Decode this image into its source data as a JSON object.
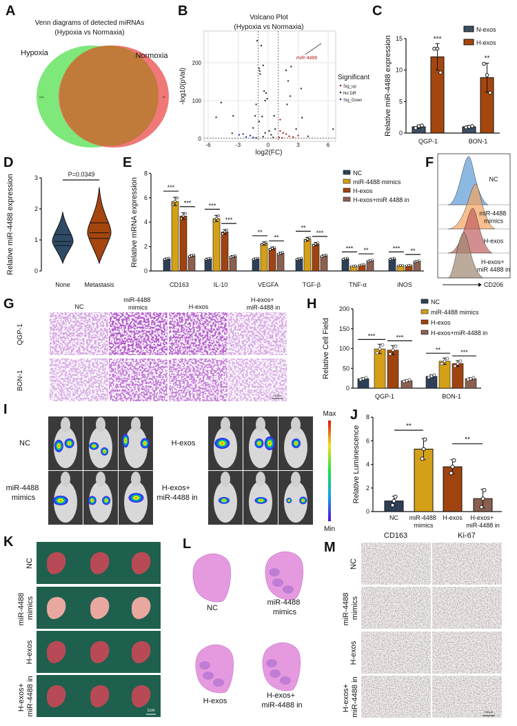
{
  "panels": {
    "A": {
      "letter": "A",
      "title": [
        "Venn diagrams of detected miRNAs",
        "(Hypoxia vs Normaxia)"
      ],
      "left_label": "Hypoxia",
      "right_label": "Normoxia",
      "left_count": "113",
      "right_count": "67",
      "colors": {
        "hypoxia": "#7ee87a",
        "normoxia": "#f07878",
        "overlap": "#c07a3a"
      }
    },
    "B": {
      "letter": "B"
    },
    "C": {
      "letter": "C"
    },
    "D": {
      "letter": "D"
    },
    "E": {
      "letter": "E"
    },
    "F": {
      "letter": "F",
      "rows": [
        "NC",
        "miR-4488\nmimics",
        "H-exos",
        "H-exos+\nmiR 4488 in"
      ],
      "axis_label": "CD206",
      "colors": [
        "#5b9bd5",
        "#f4a460",
        "#c06060",
        "#a08870"
      ]
    },
    "G": {
      "letter": "G",
      "columns": [
        "NC",
        "miR-4488\nmimics",
        "H-exos",
        "H-exos+\nmiR-4488 in"
      ],
      "rows": [
        "QGP-1",
        "BON-1"
      ],
      "scale_bar": "100μm"
    },
    "H": {
      "letter": "H"
    },
    "I": {
      "letter": "I",
      "groups": [
        "NC",
        "H-exos",
        "miR-4488\nmimics",
        "H-exos+\nmiR-4488 in"
      ],
      "colorbar_max": "Max",
      "colorbar_min": "Min"
    },
    "J": {
      "letter": "J"
    },
    "K": {
      "letter": "K",
      "rows": [
        "NC",
        "miR-4488\nmimics",
        "H-exos",
        "H-exos+\nmiR-4488 in"
      ],
      "scale_bar": "1cm"
    },
    "L": {
      "letter": "L",
      "labels": [
        "NC",
        "miR-4488\nmimics",
        "H-exos",
        "H-exos+\nmiR-4488 in"
      ]
    },
    "M": {
      "letter": "M",
      "columns": [
        "CD163",
        "Ki-67"
      ],
      "rows": [
        "NC",
        "miR-4488\nmimics",
        "H-exos",
        "H-exos+\nmiR-4488 in"
      ],
      "scale_bar": "100μm"
    }
  },
  "chart_data": [
    {
      "id": "B",
      "type": "scatter",
      "title": [
        "Volcano Plot",
        "(Hypoxia vs Normaxia)"
      ],
      "xlabel": "log2(FC)",
      "ylabel": "-log10(pVal)",
      "xlim": [
        -6.5,
        6.5
      ],
      "ylim": [
        -5,
        265
      ],
      "xticks": [
        -6,
        -3,
        0,
        3,
        6
      ],
      "yticks": [
        0,
        100,
        200
      ],
      "thresholds": {
        "log2fc": [
          -1,
          1
        ],
        "pval": 1.3
      },
      "grid": true,
      "legend": {
        "title": "Significant",
        "entries": [
          "Sig_up",
          "No Diff",
          "Sig_Down"
        ],
        "placement": "right"
      },
      "colors": {
        "Sig_up": "#b22222",
        "No Diff": "#333333",
        "Sig_Down": "#1f3a93"
      },
      "annotation": "miR-4488",
      "points": [
        [
          -1.1,
          258,
          "No Diff"
        ],
        [
          -0.7,
          245,
          "No Diff"
        ],
        [
          -0.5,
          193,
          "No Diff"
        ],
        [
          -0.9,
          185,
          "No Diff"
        ],
        [
          -0.85,
          178,
          "No Diff"
        ],
        [
          -0.8,
          170,
          "No Diff"
        ],
        [
          -0.4,
          125,
          "No Diff"
        ],
        [
          -0.2,
          120,
          "No Diff"
        ],
        [
          -0.3,
          100,
          "No Diff"
        ],
        [
          -4.7,
          95,
          "No Diff"
        ],
        [
          -1.2,
          90,
          "No Diff"
        ],
        [
          -0.1,
          105,
          "No Diff"
        ],
        [
          -5.2,
          56,
          "No Diff"
        ],
        [
          -3.5,
          60,
          "No Diff"
        ],
        [
          -1.3,
          60,
          "No Diff"
        ],
        [
          -0.6,
          58,
          "No Diff"
        ],
        [
          -0.9,
          45,
          "No Diff"
        ],
        [
          -1.5,
          28,
          "No Diff"
        ],
        [
          -2.5,
          12,
          "Sig_Down"
        ],
        [
          -2.9,
          10,
          "Sig_Down"
        ],
        [
          -1.8,
          8,
          "Sig_Down"
        ],
        [
          -2.2,
          4,
          "Sig_Down"
        ],
        [
          -1.5,
          3,
          "Sig_Down"
        ],
        [
          -1.2,
          2,
          "Sig_Down"
        ],
        [
          -3.6,
          14,
          "No Diff"
        ],
        [
          -0.3,
          15,
          "No Diff"
        ],
        [
          0.1,
          20,
          "No Diff"
        ],
        [
          0.3,
          10,
          "No Diff"
        ],
        [
          -0.5,
          5,
          "No Diff"
        ],
        [
          0.5,
          3,
          "No Diff"
        ],
        [
          0.7,
          25,
          "No Diff"
        ],
        [
          1.2,
          20,
          "Sig_up"
        ],
        [
          1.5,
          15,
          "Sig_up"
        ],
        [
          1.8,
          12,
          "Sig_up"
        ],
        [
          2.1,
          6,
          "Sig_up"
        ],
        [
          2.5,
          4,
          "Sig_up"
        ],
        [
          1.1,
          3,
          "Sig_up"
        ],
        [
          1.4,
          2,
          "Sig_up"
        ],
        [
          3.0,
          8,
          "Sig_up"
        ],
        [
          2.8,
          25,
          "No Diff"
        ],
        [
          1.8,
          180,
          "No Diff"
        ],
        [
          2.3,
          190,
          "No Diff"
        ],
        [
          2.0,
          152,
          "No Diff"
        ],
        [
          3.3,
          132,
          "No Diff"
        ],
        [
          2.2,
          112,
          "No Diff"
        ],
        [
          1.9,
          90,
          "No Diff"
        ],
        [
          3.4,
          55,
          "No Diff"
        ],
        [
          1.2,
          50,
          "Sig_up"
        ],
        [
          0.6,
          60,
          "No Diff"
        ],
        [
          4.0,
          6,
          "No Diff"
        ],
        [
          6.5,
          25,
          "No Diff"
        ]
      ]
    },
    {
      "id": "C",
      "type": "bar",
      "ylabel": "Relative miR-4488 expression",
      "ylim": [
        0,
        15
      ],
      "yticks": [
        0,
        5,
        10,
        15
      ],
      "categories": [
        "QGP-1",
        "BON-1"
      ],
      "series": [
        {
          "name": "N-exos",
          "color": "#3d4f63",
          "values": [
            1.0,
            1.0
          ],
          "sd": [
            0.25,
            0.2
          ],
          "points": [
            [
              0.8,
              1.1,
              1.2
            ],
            [
              0.9,
              1.0,
              1.1
            ]
          ]
        },
        {
          "name": "H-exos",
          "color": "#a5460f",
          "values": [
            12.1,
            8.8
          ],
          "sd": [
            2.1,
            2.3
          ],
          "points": [
            [
              13.4,
              13.4,
              9.6
            ],
            [
              11.0,
              9.2,
              6.4
            ]
          ]
        }
      ],
      "significance": [
        "***",
        "**"
      ]
    },
    {
      "id": "D",
      "type": "violin",
      "ylabel": "Relative miR-4488 expression",
      "ylim": [
        0,
        3
      ],
      "yticks": [
        0,
        1,
        2,
        3
      ],
      "categories": [
        "None",
        "Metastasis"
      ],
      "colors": [
        "#2e4a66",
        "#a5460f"
      ],
      "stats": [
        {
          "min": 0.25,
          "q1": 0.82,
          "median": 0.95,
          "q3": 1.17,
          "max": 1.9
        },
        {
          "min": 0.25,
          "q1": 1.05,
          "median": 1.23,
          "q3": 1.55,
          "max": 2.7
        }
      ],
      "annotation": "P=0.0349"
    },
    {
      "id": "E",
      "type": "bar",
      "ylabel": "Relative mRNA expression",
      "ylim": [
        0,
        8
      ],
      "yticks": [
        0,
        2,
        4,
        6,
        8
      ],
      "categories": [
        "CD163",
        "IL-10",
        "VEGFA",
        "TGF-β",
        "TNF-α",
        "iNOS"
      ],
      "series": [
        {
          "name": "NC",
          "color": "#2e4057",
          "values": [
            1.0,
            1.0,
            1.0,
            1.0,
            1.0,
            1.0
          ]
        },
        {
          "name": "miR-4488 mimics",
          "color": "#d4a017",
          "values": [
            5.7,
            4.3,
            2.25,
            2.6,
            0.4,
            0.45
          ]
        },
        {
          "name": "H-exos",
          "color": "#a0440f",
          "values": [
            4.5,
            3.2,
            1.85,
            2.2,
            0.5,
            0.45
          ]
        },
        {
          "name": "H-exos+miR 4488 in",
          "color": "#8b6050",
          "values": [
            1.25,
            1.2,
            1.45,
            1.25,
            0.85,
            0.8
          ]
        }
      ],
      "significance": [
        [
          "***",
          "***"
        ],
        [
          "***",
          "***"
        ],
        [
          "**",
          "**"
        ],
        [
          "**",
          "***"
        ],
        [
          "***",
          "**"
        ],
        [
          "***",
          "**"
        ]
      ],
      "legend": "top-right"
    },
    {
      "id": "H",
      "type": "bar",
      "ylabel": "Relative Cell Field",
      "ylim": [
        0,
        200
      ],
      "yticks": [
        0,
        50,
        100,
        150,
        200
      ],
      "categories": [
        "QGP-1",
        "BON-1"
      ],
      "series": [
        {
          "name": "NC",
          "color": "#2e4057",
          "values": [
            24,
            30
          ]
        },
        {
          "name": "miR-4488 mimics",
          "color": "#d4a017",
          "values": [
            99,
            68
          ]
        },
        {
          "name": "H-exos",
          "color": "#a0440f",
          "values": [
            96,
            62
          ]
        },
        {
          "name": "H-exos+miR-4488 in",
          "color": "#8b6050",
          "values": [
            19,
            24
          ]
        }
      ],
      "significance": [
        [
          "***",
          "***"
        ],
        [
          "**",
          "***"
        ]
      ],
      "legend": "top-right"
    },
    {
      "id": "J",
      "type": "bar",
      "ylabel": "Relative Luminescence",
      "ylim": [
        0,
        8
      ],
      "yticks": [
        0,
        2,
        4,
        6,
        8
      ],
      "categories": [
        "NC",
        "miR-4488\nmimics",
        "H-exos",
        "H-exos+\nmiR-4488 in"
      ],
      "colors": [
        "#2e4057",
        "#d4a017",
        "#a0440f",
        "#8b6050"
      ],
      "values": [
        0.9,
        5.3,
        3.8,
        1.1
      ],
      "sd": [
        0.4,
        0.9,
        0.6,
        0.8
      ],
      "significance": [
        "**",
        "**"
      ]
    }
  ]
}
